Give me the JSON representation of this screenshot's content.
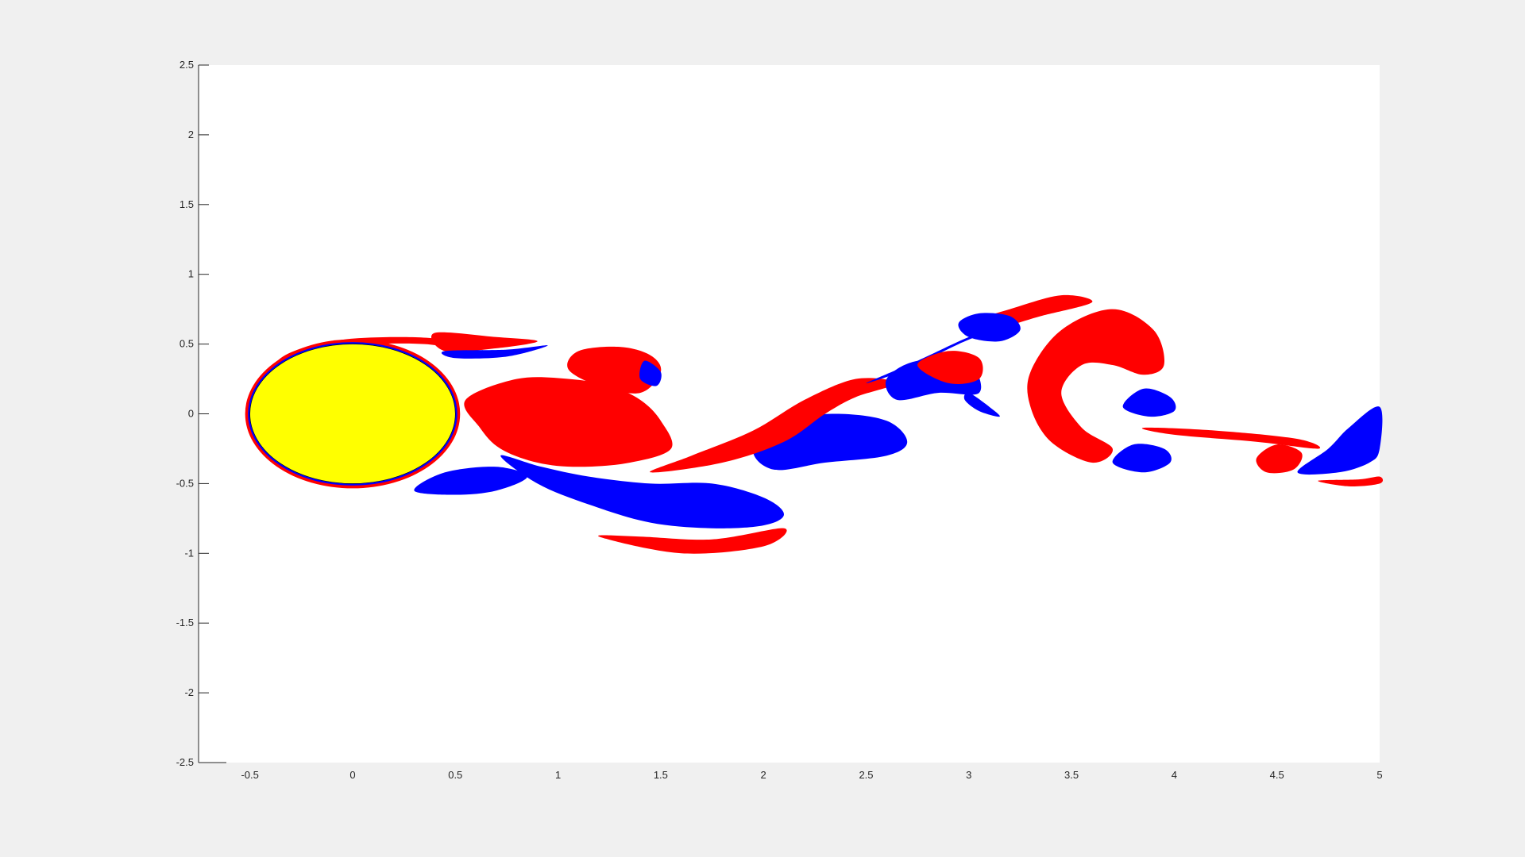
{
  "chart_data": {
    "type": "heatmap",
    "description_free": true,
    "title": "",
    "xlabel": "",
    "ylabel": "",
    "xlim": [
      -0.75,
      5
    ],
    "ylim": [
      -2.5,
      2.5
    ],
    "x_ticks": [
      -0.5,
      0,
      0.5,
      1,
      1.5,
      2,
      2.5,
      3,
      3.5,
      4,
      4.5,
      5
    ],
    "x_tick_labels": [
      "-0.5",
      "0",
      "0.5",
      "1",
      "1.5",
      "2",
      "2.5",
      "3",
      "3.5",
      "4",
      "4.5",
      "5"
    ],
    "y_ticks": [
      2.5,
      2,
      1.5,
      1,
      0.5,
      0,
      -0.5,
      -1,
      -1.5,
      -2,
      -2.5
    ],
    "y_tick_labels": [
      "2.5",
      "2",
      "1.5",
      "1",
      "0.5",
      "0",
      "-0.5",
      "-1",
      "-1.5",
      "-2",
      "-2.5"
    ],
    "grid": false,
    "legend": "none",
    "colors": {
      "positive": "#ff0000",
      "negative": "#0000ff",
      "body": "#ffff00",
      "background": "#ffffff",
      "figure": "#f0f0f0"
    },
    "body": {
      "shape": "ellipse",
      "center": [
        0,
        0
      ],
      "semi_axis_x": 0.5,
      "semi_axis_y": 0.5
    },
    "regions": [
      {
        "sign": "positive",
        "points": [
          [
            -0.45,
            0.15
          ],
          [
            -0.35,
            0.4
          ],
          [
            -0.1,
            0.52
          ],
          [
            0.2,
            0.55
          ],
          [
            0.45,
            0.53
          ],
          [
            0.55,
            0.45
          ],
          [
            0.35,
            0.5
          ],
          [
            0.0,
            0.49
          ],
          [
            -0.3,
            0.4
          ],
          [
            -0.47,
            0.15
          ]
        ]
      },
      {
        "sign": "positive",
        "points": [
          [
            0.4,
            0.58
          ],
          [
            0.7,
            0.55
          ],
          [
            0.9,
            0.52
          ],
          [
            0.7,
            0.47
          ],
          [
            0.45,
            0.45
          ]
        ]
      },
      {
        "sign": "negative",
        "points": [
          [
            0.45,
            0.45
          ],
          [
            0.75,
            0.46
          ],
          [
            0.95,
            0.49
          ],
          [
            0.75,
            0.41
          ],
          [
            0.5,
            0.4
          ]
        ]
      },
      {
        "sign": "positive",
        "points": [
          [
            0.55,
            0.1
          ],
          [
            0.8,
            0.25
          ],
          [
            1.05,
            0.25
          ],
          [
            1.25,
            0.2
          ],
          [
            1.4,
            0.1
          ],
          [
            1.5,
            -0.05
          ],
          [
            1.55,
            -0.25
          ],
          [
            1.35,
            -0.35
          ],
          [
            1.1,
            -0.38
          ],
          [
            0.9,
            -0.35
          ],
          [
            0.72,
            -0.25
          ],
          [
            0.62,
            -0.1
          ]
        ]
      },
      {
        "sign": "positive",
        "points": [
          [
            1.1,
            0.45
          ],
          [
            1.3,
            0.48
          ],
          [
            1.45,
            0.42
          ],
          [
            1.5,
            0.3
          ],
          [
            1.4,
            0.15
          ],
          [
            1.2,
            0.2
          ],
          [
            1.05,
            0.32
          ]
        ]
      },
      {
        "sign": "negative",
        "points": [
          [
            1.42,
            0.38
          ],
          [
            1.5,
            0.3
          ],
          [
            1.48,
            0.2
          ],
          [
            1.4,
            0.25
          ]
        ]
      },
      {
        "sign": "negative",
        "points": [
          [
            0.72,
            -0.3
          ],
          [
            0.9,
            -0.5
          ],
          [
            1.15,
            -0.65
          ],
          [
            1.45,
            -0.78
          ],
          [
            1.75,
            -0.82
          ],
          [
            2.0,
            -0.8
          ],
          [
            2.1,
            -0.72
          ],
          [
            2.0,
            -0.6
          ],
          [
            1.75,
            -0.5
          ],
          [
            1.45,
            -0.5
          ],
          [
            1.15,
            -0.45
          ],
          [
            0.92,
            -0.38
          ]
        ]
      },
      {
        "sign": "positive",
        "points": [
          [
            1.2,
            -0.88
          ],
          [
            1.6,
            -1.0
          ],
          [
            2.0,
            -0.95
          ],
          [
            2.1,
            -0.82
          ],
          [
            1.75,
            -0.9
          ],
          [
            1.4,
            -0.88
          ]
        ]
      },
      {
        "sign": "negative",
        "points": [
          [
            0.3,
            -0.55
          ],
          [
            0.5,
            -0.58
          ],
          [
            0.7,
            -0.55
          ],
          [
            0.85,
            -0.45
          ],
          [
            0.7,
            -0.38
          ],
          [
            0.45,
            -0.42
          ]
        ]
      },
      {
        "sign": "negative",
        "points": [
          [
            1.95,
            -0.25
          ],
          [
            2.1,
            -0.05
          ],
          [
            2.35,
            0.0
          ],
          [
            2.6,
            -0.05
          ],
          [
            2.7,
            -0.2
          ],
          [
            2.6,
            -0.3
          ],
          [
            2.3,
            -0.35
          ],
          [
            2.05,
            -0.4
          ]
        ]
      },
      {
        "sign": "positive",
        "points": [
          [
            1.45,
            -0.42
          ],
          [
            1.8,
            -0.35
          ],
          [
            2.1,
            -0.2
          ],
          [
            2.3,
            0.0
          ],
          [
            2.45,
            0.12
          ],
          [
            2.65,
            0.22
          ],
          [
            2.45,
            0.25
          ],
          [
            2.2,
            0.1
          ],
          [
            1.95,
            -0.12
          ],
          [
            1.65,
            -0.3
          ]
        ]
      },
      {
        "sign": "negative",
        "points": [
          [
            2.5,
            0.22
          ],
          [
            2.75,
            0.38
          ],
          [
            3.0,
            0.55
          ],
          [
            3.15,
            0.62
          ],
          [
            2.95,
            0.5
          ],
          [
            2.7,
            0.32
          ]
        ]
      },
      {
        "sign": "positive",
        "points": [
          [
            3.0,
            0.65
          ],
          [
            3.2,
            0.75
          ],
          [
            3.45,
            0.85
          ],
          [
            3.6,
            0.8
          ],
          [
            3.35,
            0.7
          ],
          [
            3.1,
            0.6
          ]
        ]
      },
      {
        "sign": "negative",
        "points": [
          [
            3.0,
            0.55
          ],
          [
            2.95,
            0.65
          ],
          [
            3.05,
            0.72
          ],
          [
            3.2,
            0.7
          ],
          [
            3.25,
            0.6
          ],
          [
            3.15,
            0.52
          ]
        ]
      },
      {
        "sign": "negative",
        "points": [
          [
            2.6,
            0.25
          ],
          [
            2.75,
            0.38
          ],
          [
            3.0,
            0.35
          ],
          [
            3.05,
            0.15
          ],
          [
            2.85,
            0.15
          ],
          [
            2.65,
            0.1
          ]
        ]
      },
      {
        "sign": "positive",
        "points": [
          [
            2.75,
            0.35
          ],
          [
            2.9,
            0.45
          ],
          [
            3.05,
            0.4
          ],
          [
            3.05,
            0.25
          ],
          [
            2.9,
            0.22
          ]
        ]
      },
      {
        "sign": "negative",
        "points": [
          [
            3.0,
            0.15
          ],
          [
            3.1,
            0.05
          ],
          [
            3.15,
            -0.02
          ],
          [
            3.05,
            0.02
          ],
          [
            2.98,
            0.1
          ]
        ]
      },
      {
        "sign": "positive",
        "points": [
          [
            3.3,
            0.3
          ],
          [
            3.45,
            0.6
          ],
          [
            3.7,
            0.75
          ],
          [
            3.9,
            0.6
          ],
          [
            3.95,
            0.35
          ],
          [
            3.85,
            0.28
          ],
          [
            3.7,
            0.35
          ],
          [
            3.55,
            0.35
          ],
          [
            3.45,
            0.15
          ],
          [
            3.55,
            -0.1
          ],
          [
            3.7,
            -0.25
          ],
          [
            3.6,
            -0.35
          ],
          [
            3.4,
            -0.2
          ],
          [
            3.3,
            0.05
          ]
        ]
      },
      {
        "sign": "negative",
        "points": [
          [
            3.75,
            0.05
          ],
          [
            3.85,
            0.18
          ],
          [
            3.98,
            0.12
          ],
          [
            4.0,
            0.02
          ],
          [
            3.88,
            -0.02
          ]
        ]
      },
      {
        "sign": "negative",
        "points": [
          [
            3.7,
            -0.35
          ],
          [
            3.8,
            -0.22
          ],
          [
            3.95,
            -0.25
          ],
          [
            3.98,
            -0.35
          ],
          [
            3.85,
            -0.42
          ]
        ]
      },
      {
        "sign": "positive",
        "points": [
          [
            3.85,
            -0.1
          ],
          [
            4.2,
            -0.12
          ],
          [
            4.6,
            -0.18
          ],
          [
            4.7,
            -0.25
          ],
          [
            4.4,
            -0.2
          ],
          [
            4.0,
            -0.15
          ]
        ]
      },
      {
        "sign": "positive",
        "points": [
          [
            4.4,
            -0.32
          ],
          [
            4.5,
            -0.22
          ],
          [
            4.62,
            -0.28
          ],
          [
            4.58,
            -0.4
          ],
          [
            4.45,
            -0.42
          ]
        ]
      },
      {
        "sign": "negative",
        "points": [
          [
            4.6,
            -0.42
          ],
          [
            4.8,
            -0.42
          ],
          [
            4.95,
            -0.35
          ],
          [
            5.0,
            -0.25
          ],
          [
            5.0,
            0.05
          ],
          [
            4.85,
            -0.1
          ],
          [
            4.75,
            -0.25
          ]
        ]
      },
      {
        "sign": "positive",
        "points": [
          [
            4.7,
            -0.48
          ],
          [
            4.9,
            -0.47
          ],
          [
            5.0,
            -0.45
          ],
          [
            5.0,
            -0.5
          ],
          [
            4.85,
            -0.52
          ]
        ]
      }
    ]
  }
}
